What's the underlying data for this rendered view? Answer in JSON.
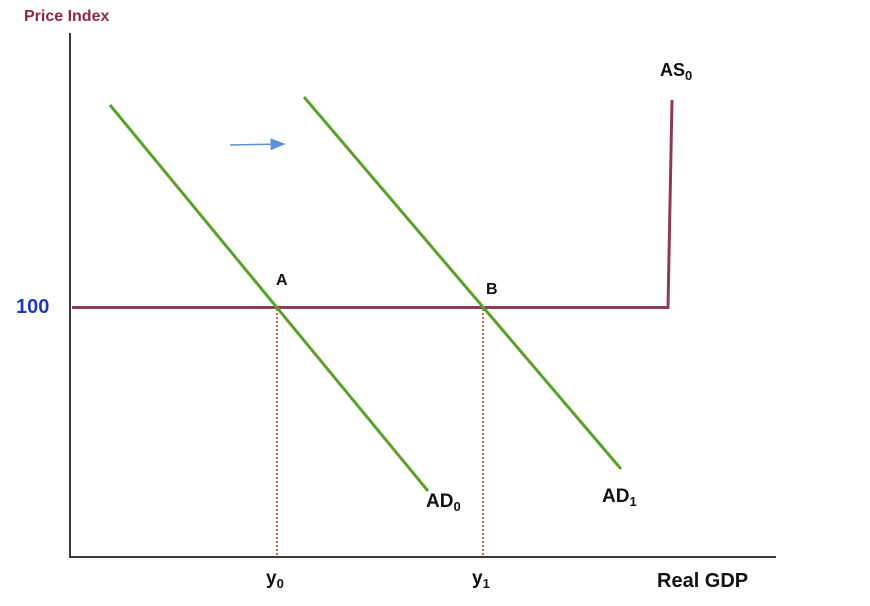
{
  "diagram": {
    "y_axis_title": "Price Index",
    "x_axis_title": "Real GDP",
    "price_tick": "100",
    "curves": {
      "as": {
        "name": "AS",
        "sub": "0"
      },
      "ad0": {
        "name": "AD",
        "sub": "0"
      },
      "ad1": {
        "name": "AD",
        "sub": "1"
      }
    },
    "points": {
      "a": "A",
      "b": "B"
    },
    "outputs": {
      "y0": {
        "name": "y",
        "sub": "0"
      },
      "y1": {
        "name": "y",
        "sub": "1"
      }
    }
  },
  "colors": {
    "axis": "#3a3a3a",
    "as_curve": "#8b3a5c",
    "ad_curve": "#5aa02c",
    "drop_line": "#c86a3a",
    "shift_arrow": "#5b8fd6",
    "price_title": "#8b2a42",
    "price_tick": "#1f3cb0"
  }
}
